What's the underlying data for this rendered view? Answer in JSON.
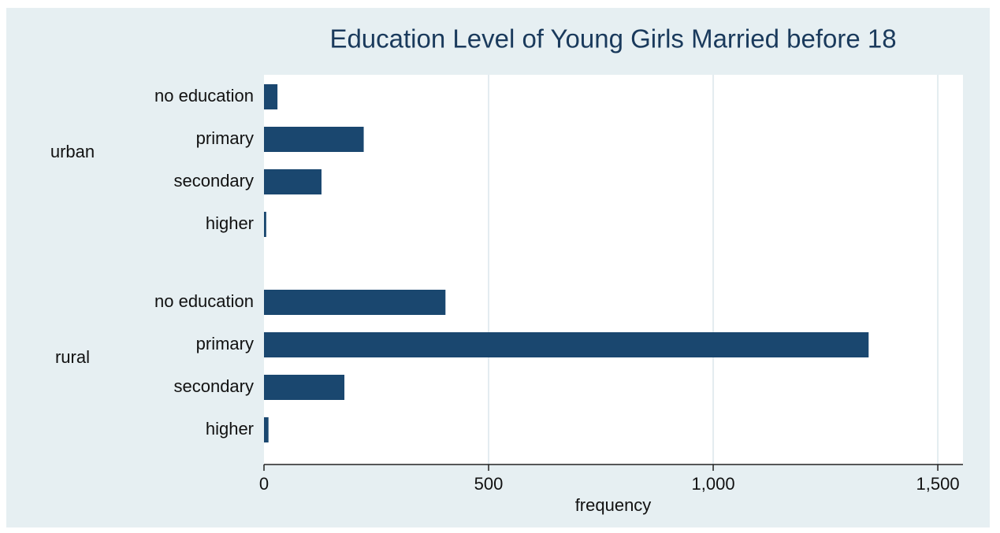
{
  "chart_data": {
    "type": "bar",
    "orientation": "horizontal",
    "title": "Education Level of Young Girls Married before 18",
    "xlabel": "frequency",
    "groups": [
      {
        "name": "urban",
        "categories": [
          "no education",
          "primary",
          "secondary",
          "higher"
        ],
        "values": [
          30,
          222,
          128,
          5
        ]
      },
      {
        "name": "rural",
        "categories": [
          "no education",
          "primary",
          "secondary",
          "higher"
        ],
        "values": [
          404,
          1346,
          179,
          10
        ]
      }
    ],
    "color": "#1a476f",
    "xlim": [
      0,
      1556
    ],
    "xticks": [
      0,
      500,
      {
        "value": 1000,
        "label": "1,000"
      },
      {
        "value": 1500,
        "label": "1,500"
      }
    ],
    "grid": true
  }
}
